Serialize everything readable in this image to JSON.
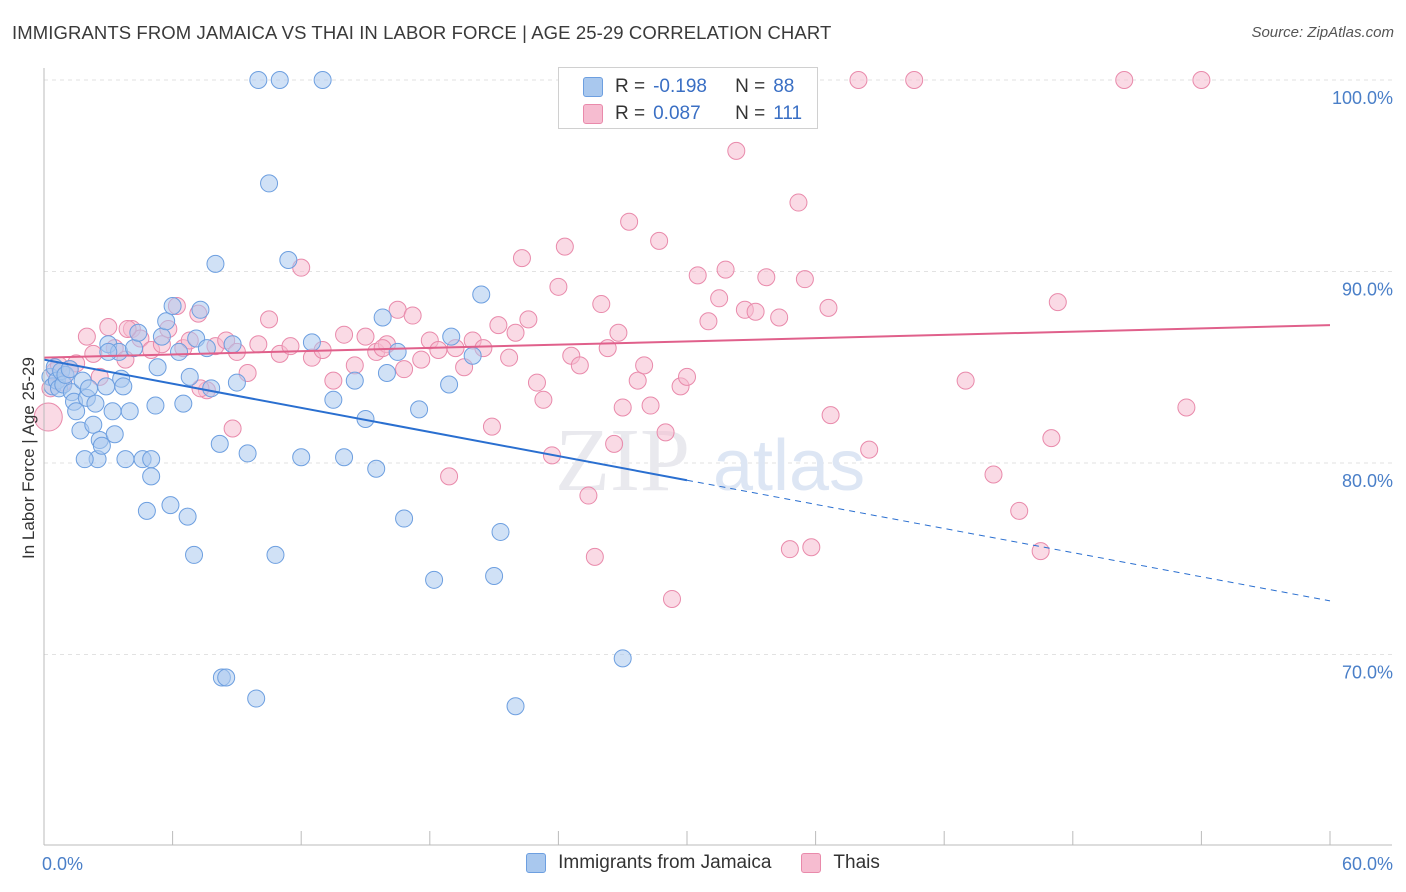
{
  "title": "IMMIGRANTS FROM JAMAICA VS THAI IN LABOR FORCE | AGE 25-29 CORRELATION CHART",
  "source": "Source: ZipAtlas.com",
  "watermark": {
    "zip": "ZIP",
    "atlas": "atlas"
  },
  "colors": {
    "jamaica_fill": "#a9c8ee",
    "jamaica_stroke": "#6d9fe0",
    "jamaica_line": "#2a6fd0",
    "thai_fill": "#f6bcd0",
    "thai_stroke": "#e98aab",
    "thai_line": "#e0608b",
    "grid": "#e2e2e2",
    "tick_text": "#4a7fc8"
  },
  "legend_top": {
    "rows": [
      {
        "r_label": "R =",
        "r_value": "-0.198",
        "n_label": "N =",
        "n_value": "88"
      },
      {
        "r_label": "R =",
        "r_value": "0.087",
        "n_label": "N =",
        "n_value": "111"
      }
    ]
  },
  "legend_bottom": [
    "Immigrants from Jamaica",
    "Thais"
  ],
  "chart_data": {
    "type": "scatter",
    "xlabel": "",
    "ylabel": "In Labor Force | Age 25-29",
    "xlim": [
      0,
      60
    ],
    "ylim": [
      61,
      101.5
    ],
    "x_tick_labels": [
      {
        "value": 0,
        "label": "0.0%"
      },
      {
        "value": 60,
        "label": "60.0%"
      }
    ],
    "y_tick_labels": [
      {
        "value": 100,
        "label": "100.0%"
      },
      {
        "value": 90,
        "label": "90.0%"
      },
      {
        "value": 80,
        "label": "80.0%"
      },
      {
        "value": 70,
        "label": "70.0%"
      }
    ],
    "grid": true,
    "legend_position": "top-center and bottom",
    "series": [
      {
        "name": "Immigrants from Jamaica",
        "r": -0.198,
        "n": 88,
        "trend": {
          "x": [
            0,
            60
          ],
          "y": [
            85.4,
            72.8
          ],
          "solid_until_x": 30
        },
        "points": [
          [
            0.3,
            84.5
          ],
          [
            0.4,
            84.0
          ],
          [
            0.5,
            85.0
          ],
          [
            0.6,
            84.3
          ],
          [
            0.7,
            83.9
          ],
          [
            0.8,
            84.8
          ],
          [
            0.9,
            84.1
          ],
          [
            1.0,
            84.6
          ],
          [
            1.2,
            84.9
          ],
          [
            1.3,
            83.7
          ],
          [
            1.4,
            83.2
          ],
          [
            1.5,
            82.7
          ],
          [
            1.7,
            81.7
          ],
          [
            1.8,
            84.3
          ],
          [
            2.0,
            83.4
          ],
          [
            2.1,
            83.9
          ],
          [
            2.3,
            82.0
          ],
          [
            2.4,
            83.1
          ],
          [
            2.5,
            80.2
          ],
          [
            2.6,
            81.2
          ],
          [
            2.7,
            80.9
          ],
          [
            2.9,
            84.0
          ],
          [
            3.0,
            86.2
          ],
          [
            3.2,
            82.7
          ],
          [
            3.3,
            81.5
          ],
          [
            3.5,
            85.8
          ],
          [
            3.6,
            84.4
          ],
          [
            3.7,
            84.0
          ],
          [
            3.8,
            80.2
          ],
          [
            4.0,
            82.7
          ],
          [
            4.2,
            86.0
          ],
          [
            4.4,
            86.8
          ],
          [
            4.6,
            80.2
          ],
          [
            4.8,
            77.5
          ],
          [
            5.0,
            79.3
          ],
          [
            5.2,
            83.0
          ],
          [
            5.3,
            85.0
          ],
          [
            5.5,
            86.6
          ],
          [
            5.7,
            87.4
          ],
          [
            5.9,
            77.8
          ],
          [
            6.0,
            88.2
          ],
          [
            6.3,
            85.8
          ],
          [
            6.5,
            83.1
          ],
          [
            6.8,
            84.5
          ],
          [
            7.0,
            75.2
          ],
          [
            7.1,
            86.5
          ],
          [
            7.3,
            88.0
          ],
          [
            7.6,
            86.0
          ],
          [
            7.8,
            83.9
          ],
          [
            8.0,
            90.4
          ],
          [
            8.2,
            81.0
          ],
          [
            8.3,
            68.8
          ],
          [
            8.5,
            68.8
          ],
          [
            8.8,
            86.2
          ],
          [
            9.5,
            80.5
          ],
          [
            9.9,
            67.7
          ],
          [
            10.0,
            100.0
          ],
          [
            10.5,
            94.6
          ],
          [
            11.0,
            100.0
          ],
          [
            11.4,
            90.6
          ],
          [
            12.0,
            80.3
          ],
          [
            13.0,
            100.0
          ],
          [
            13.5,
            83.3
          ],
          [
            14.0,
            80.3
          ],
          [
            15.0,
            82.3
          ],
          [
            15.5,
            79.7
          ],
          [
            15.8,
            87.6
          ],
          [
            16.5,
            85.8
          ],
          [
            16.8,
            77.1
          ],
          [
            17.5,
            82.8
          ],
          [
            18.2,
            73.9
          ],
          [
            18.9,
            84.1
          ],
          [
            19.0,
            86.6
          ],
          [
            20.0,
            85.6
          ],
          [
            20.4,
            88.8
          ],
          [
            21.0,
            74.1
          ],
          [
            21.3,
            76.4
          ],
          [
            22.0,
            67.3
          ],
          [
            27.0,
            69.8
          ],
          [
            6.7,
            77.2
          ],
          [
            10.8,
            75.2
          ],
          [
            14.5,
            84.3
          ],
          [
            16.0,
            84.7
          ],
          [
            5.0,
            80.2
          ],
          [
            3.0,
            85.8
          ],
          [
            9.0,
            84.2
          ],
          [
            12.5,
            86.3
          ],
          [
            1.9,
            80.2
          ]
        ]
      },
      {
        "name": "Thais",
        "r": 0.087,
        "n": 111,
        "trend": {
          "x": [
            0,
            60
          ],
          "y": [
            85.5,
            87.2
          ]
        },
        "points": [
          [
            0.2,
            82.4
          ],
          [
            0.3,
            83.9
          ],
          [
            0.5,
            84.8
          ],
          [
            0.7,
            85.1
          ],
          [
            0.9,
            84.2
          ],
          [
            1.2,
            84.9
          ],
          [
            1.5,
            85.2
          ],
          [
            2.0,
            86.6
          ],
          [
            2.3,
            85.7
          ],
          [
            2.6,
            84.5
          ],
          [
            3.0,
            87.1
          ],
          [
            3.3,
            86.0
          ],
          [
            3.8,
            85.4
          ],
          [
            4.1,
            87.0
          ],
          [
            4.5,
            86.5
          ],
          [
            5.0,
            85.9
          ],
          [
            5.5,
            86.2
          ],
          [
            5.8,
            87.0
          ],
          [
            6.2,
            88.2
          ],
          [
            6.5,
            86.0
          ],
          [
            6.8,
            86.4
          ],
          [
            7.2,
            87.8
          ],
          [
            7.6,
            83.8
          ],
          [
            8.0,
            86.1
          ],
          [
            8.5,
            86.4
          ],
          [
            8.8,
            81.8
          ],
          [
            9.0,
            85.8
          ],
          [
            9.5,
            84.7
          ],
          [
            10.0,
            86.2
          ],
          [
            10.5,
            87.5
          ],
          [
            11.0,
            85.7
          ],
          [
            11.5,
            86.1
          ],
          [
            12.0,
            90.2
          ],
          [
            12.5,
            85.5
          ],
          [
            13.0,
            85.9
          ],
          [
            13.5,
            84.3
          ],
          [
            14.0,
            86.7
          ],
          [
            14.5,
            85.1
          ],
          [
            15.0,
            86.6
          ],
          [
            15.5,
            85.8
          ],
          [
            16.0,
            86.2
          ],
          [
            16.5,
            88.0
          ],
          [
            16.8,
            84.9
          ],
          [
            17.2,
            87.7
          ],
          [
            17.6,
            85.4
          ],
          [
            18.0,
            86.4
          ],
          [
            18.4,
            85.9
          ],
          [
            18.9,
            79.3
          ],
          [
            19.2,
            86.0
          ],
          [
            19.6,
            85.0
          ],
          [
            20.0,
            86.4
          ],
          [
            20.5,
            86.0
          ],
          [
            20.9,
            81.9
          ],
          [
            21.2,
            87.2
          ],
          [
            21.7,
            85.5
          ],
          [
            22.0,
            86.8
          ],
          [
            22.3,
            90.7
          ],
          [
            22.6,
            87.5
          ],
          [
            23.0,
            84.2
          ],
          [
            23.3,
            83.3
          ],
          [
            23.7,
            80.4
          ],
          [
            24.0,
            89.2
          ],
          [
            24.3,
            91.3
          ],
          [
            24.6,
            85.6
          ],
          [
            25.0,
            85.1
          ],
          [
            25.4,
            78.3
          ],
          [
            25.7,
            75.1
          ],
          [
            26.0,
            88.3
          ],
          [
            26.3,
            86.0
          ],
          [
            26.6,
            81.0
          ],
          [
            27.0,
            82.9
          ],
          [
            27.3,
            92.6
          ],
          [
            27.7,
            84.3
          ],
          [
            28.0,
            85.1
          ],
          [
            28.3,
            83.0
          ],
          [
            28.7,
            91.6
          ],
          [
            29.0,
            81.6
          ],
          [
            29.3,
            72.9
          ],
          [
            29.7,
            84.0
          ],
          [
            30.0,
            84.5
          ],
          [
            30.5,
            89.8
          ],
          [
            31.0,
            87.4
          ],
          [
            31.5,
            88.6
          ],
          [
            31.8,
            90.1
          ],
          [
            32.3,
            96.3
          ],
          [
            32.7,
            88.0
          ],
          [
            33.2,
            87.9
          ],
          [
            33.7,
            89.7
          ],
          [
            34.3,
            87.6
          ],
          [
            34.8,
            75.5
          ],
          [
            35.2,
            93.6
          ],
          [
            35.5,
            89.6
          ],
          [
            35.8,
            75.6
          ],
          [
            36.7,
            82.5
          ],
          [
            38.0,
            100.0
          ],
          [
            38.5,
            80.7
          ],
          [
            40.6,
            100.0
          ],
          [
            43.0,
            84.3
          ],
          [
            44.3,
            79.4
          ],
          [
            45.5,
            77.5
          ],
          [
            46.5,
            75.4
          ],
          [
            47.0,
            81.3
          ],
          [
            47.3,
            88.4
          ],
          [
            50.4,
            100.0
          ],
          [
            53.3,
            82.9
          ],
          [
            54.0,
            100.0
          ],
          [
            7.3,
            83.9
          ],
          [
            36.6,
            88.1
          ],
          [
            15.8,
            86.0
          ],
          [
            3.9,
            87.0
          ],
          [
            26.8,
            86.8
          ]
        ]
      }
    ]
  }
}
